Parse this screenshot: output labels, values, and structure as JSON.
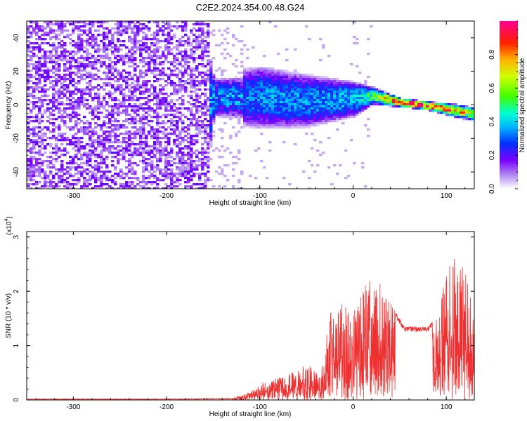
{
  "title": "C2E2.2024.354.00.48.G24",
  "colors": {
    "snr_line": "#ee3030",
    "frame": "#000000",
    "background": "#ffffff"
  },
  "colorbar": {
    "label": "Normalized spectral amplitude",
    "range": [
      0,
      1
    ],
    "ticks": [
      "0.0",
      "0.2",
      "0.4",
      "0.6",
      "0.8"
    ]
  },
  "chart_data": [
    {
      "type": "heatmap",
      "title": "C2E2.2024.354.00.48.G24",
      "xlabel": "Height of straight line (km)",
      "ylabel": "Frequency (Hz)",
      "xlim": [
        -350,
        130
      ],
      "ylim": [
        -50,
        50
      ],
      "xticks": [
        "-300",
        "-200",
        "-100",
        "0",
        "100"
      ],
      "yticks": [
        "40",
        "20",
        "0",
        "-20",
        "-40"
      ],
      "grid": false,
      "colormap": "rainbow (white-violet-blue-cyan-green-yellow-orange-red-magenta)",
      "description_points": [
        {
          "x": -350,
          "amplitude": 0.15,
          "spread_hz": 50
        },
        {
          "x": -160,
          "amplitude": 0.15,
          "spread_hz": 50
        },
        {
          "x": -150,
          "amplitude": 0.25,
          "center_hz": 5,
          "spread_hz": 12
        },
        {
          "x": -100,
          "amplitude": 0.35,
          "center_hz": 5,
          "spread_hz": 14
        },
        {
          "x": -50,
          "amplitude": 0.35,
          "center_hz": 3,
          "spread_hz": 12
        },
        {
          "x": 0,
          "amplitude": 0.4,
          "center_hz": 4,
          "spread_hz": 8
        },
        {
          "x": 20,
          "amplitude": 0.55,
          "center_hz": 6,
          "spread_hz": 4
        },
        {
          "x": 50,
          "amplitude": 0.95,
          "center_hz": 2,
          "spread_hz": 2
        },
        {
          "x": 80,
          "amplitude": 0.9,
          "center_hz": 0,
          "spread_hz": 2
        },
        {
          "x": 110,
          "amplitude": 0.8,
          "center_hz": -3,
          "spread_hz": 3
        },
        {
          "x": 130,
          "amplitude": 0.6,
          "center_hz": -5,
          "spread_hz": 3
        }
      ]
    },
    {
      "type": "line",
      "xlabel": "Height of straight line (km)",
      "ylabel": "SNR (10 * v/v)",
      "y_multiplier": "(x10",
      "y_multiplier_exp": "4",
      "xlim": [
        -350,
        130
      ],
      "ylim": [
        0,
        3.1
      ],
      "xticks": [
        "-300",
        "-200",
        "-100",
        "0",
        "100"
      ],
      "yticks": [
        "0",
        "1",
        "2",
        "3"
      ],
      "grid": false,
      "series": [
        {
          "color": "#ee3030",
          "envelope": [
            {
              "x": -350,
              "y": 0.02
            },
            {
              "x": -200,
              "y": 0.02
            },
            {
              "x": -130,
              "y": 0.03
            },
            {
              "x": -110,
              "y": 0.15
            },
            {
              "x": -95,
              "y": 0.35
            },
            {
              "x": -70,
              "y": 0.45
            },
            {
              "x": -50,
              "y": 0.7
            },
            {
              "x": -35,
              "y": 0.45
            },
            {
              "x": -25,
              "y": 1.6
            },
            {
              "x": -10,
              "y": 1.8
            },
            {
              "x": 0,
              "y": 1.6
            },
            {
              "x": 15,
              "y": 2.2
            },
            {
              "x": 25,
              "y": 2.25
            },
            {
              "x": 40,
              "y": 1.8
            },
            {
              "x": 55,
              "y": 1.35
            },
            {
              "x": 70,
              "y": 1.35
            },
            {
              "x": 80,
              "y": 1.35
            },
            {
              "x": 92,
              "y": 1.6
            },
            {
              "x": 100,
              "y": 2.45
            },
            {
              "x": 105,
              "y": 3.1
            },
            {
              "x": 112,
              "y": 2.4
            },
            {
              "x": 120,
              "y": 2.5
            },
            {
              "x": 130,
              "y": 1.5
            }
          ]
        }
      ]
    }
  ]
}
